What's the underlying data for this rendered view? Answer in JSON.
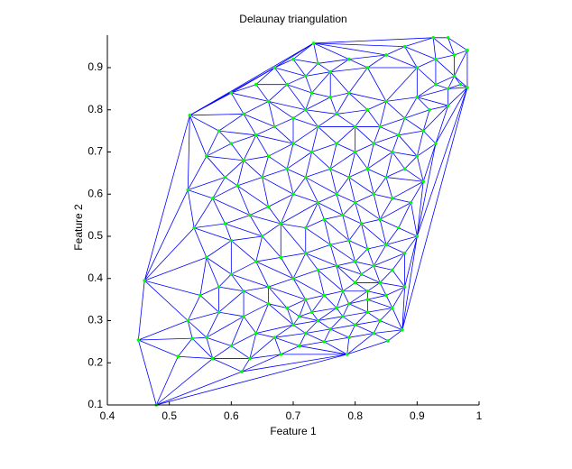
{
  "chart_data": {
    "type": "scatter",
    "triangulation": true,
    "title": "Delaunay triangulation",
    "xlabel": "Feature 1",
    "ylabel": "Feature 2",
    "color": "#00ff00",
    "edge_color": "#0000ff",
    "xlim": [
      0.4,
      1
    ],
    "ylim": [
      0.1,
      0.977
    ],
    "xticks": [
      0.4,
      0.5,
      0.6,
      0.7,
      0.8,
      0.9,
      1
    ],
    "yticks": [
      0.1,
      0.2,
      0.3,
      0.4,
      0.5,
      0.6,
      0.7,
      0.8,
      0.9
    ],
    "x": [
      0.479,
      0.45,
      0.46,
      0.533,
      0.733,
      0.926,
      0.95,
      0.981,
      0.981,
      0.876,
      0.853,
      0.787,
      0.617,
      0.514,
      0.537,
      0.6,
      0.64,
      0.67,
      0.7,
      0.72,
      0.74,
      0.76,
      0.79,
      0.82,
      0.85,
      0.88,
      0.9,
      0.93,
      0.96,
      0.96,
      0.95,
      0.97,
      0.93,
      0.9,
      0.92,
      0.95,
      0.88,
      0.85,
      0.82,
      0.79,
      0.76,
      0.72,
      0.73,
      0.69,
      0.66,
      0.62,
      0.58,
      0.56,
      0.6,
      0.64,
      0.67,
      0.7,
      0.74,
      0.77,
      0.8,
      0.84,
      0.87,
      0.91,
      0.93,
      0.9,
      0.86,
      0.83,
      0.8,
      0.77,
      0.73,
      0.7,
      0.66,
      0.62,
      0.59,
      0.53,
      0.57,
      0.61,
      0.65,
      0.69,
      0.72,
      0.76,
      0.79,
      0.82,
      0.85,
      0.88,
      0.91,
      0.89,
      0.86,
      0.83,
      0.8,
      0.77,
      0.74,
      0.7,
      0.66,
      0.63,
      0.59,
      0.54,
      0.56,
      0.6,
      0.65,
      0.68,
      0.72,
      0.75,
      0.78,
      0.81,
      0.84,
      0.87,
      0.9,
      0.88,
      0.85,
      0.82,
      0.79,
      0.76,
      0.72,
      0.68,
      0.64,
      0.6,
      0.55,
      0.58,
      0.62,
      0.66,
      0.7,
      0.74,
      0.77,
      0.8,
      0.83,
      0.86,
      0.88,
      0.85,
      0.82,
      0.8,
      0.78,
      0.75,
      0.72,
      0.69,
      0.66,
      0.62,
      0.58,
      0.53,
      0.56,
      0.6,
      0.64,
      0.67,
      0.7,
      0.72,
      0.74,
      0.76,
      0.78,
      0.8,
      0.82,
      0.84,
      0.86,
      0.83,
      0.79,
      0.75,
      0.71,
      0.68,
      0.63,
      0.57,
      0.82,
      0.84,
      0.81,
      0.79,
      0.77,
      0.73,
      0.71
    ],
    "y": [
      0.1,
      0.254,
      0.395,
      0.787,
      0.958,
      0.971,
      0.971,
      0.941,
      0.853,
      0.278,
      0.252,
      0.22,
      0.179,
      0.215,
      0.258,
      0.84,
      0.86,
      0.9,
      0.92,
      0.88,
      0.91,
      0.89,
      0.92,
      0.9,
      0.93,
      0.95,
      0.9,
      0.92,
      0.93,
      0.88,
      0.85,
      0.86,
      0.86,
      0.83,
      0.8,
      0.81,
      0.78,
      0.82,
      0.8,
      0.84,
      0.83,
      0.8,
      0.84,
      0.86,
      0.82,
      0.79,
      0.75,
      0.69,
      0.72,
      0.74,
      0.76,
      0.78,
      0.76,
      0.79,
      0.76,
      0.76,
      0.74,
      0.75,
      0.72,
      0.69,
      0.7,
      0.72,
      0.7,
      0.72,
      0.7,
      0.72,
      0.69,
      0.68,
      0.64,
      0.61,
      0.59,
      0.62,
      0.64,
      0.66,
      0.64,
      0.66,
      0.64,
      0.66,
      0.64,
      0.66,
      0.63,
      0.58,
      0.59,
      0.6,
      0.58,
      0.6,
      0.58,
      0.6,
      0.57,
      0.55,
      0.53,
      0.52,
      0.45,
      0.49,
      0.5,
      0.53,
      0.52,
      0.54,
      0.55,
      0.53,
      0.54,
      0.52,
      0.5,
      0.46,
      0.48,
      0.47,
      0.49,
      0.48,
      0.46,
      0.45,
      0.44,
      0.41,
      0.36,
      0.38,
      0.37,
      0.38,
      0.4,
      0.42,
      0.43,
      0.44,
      0.43,
      0.42,
      0.38,
      0.36,
      0.37,
      0.39,
      0.37,
      0.36,
      0.35,
      0.33,
      0.34,
      0.31,
      0.32,
      0.3,
      0.26,
      0.24,
      0.27,
      0.26,
      0.29,
      0.27,
      0.3,
      0.28,
      0.31,
      0.29,
      0.32,
      0.3,
      0.33,
      0.27,
      0.26,
      0.25,
      0.24,
      0.22,
      0.21,
      0.21,
      0.35,
      0.39,
      0.41,
      0.34,
      0.33,
      0.32,
      0.31
    ]
  }
}
